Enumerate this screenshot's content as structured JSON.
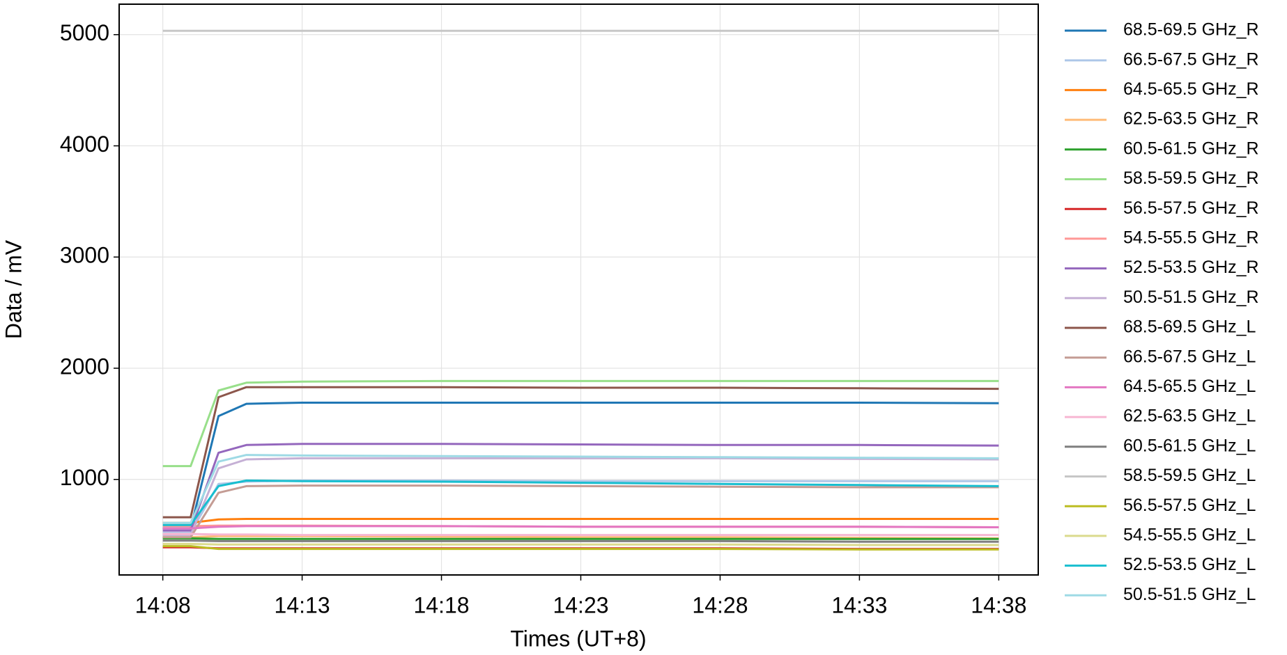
{
  "chart_data": {
    "type": "line",
    "xlabel": "Times (UT+8)",
    "ylabel": "Data / mV",
    "x": [
      "14:08",
      "14:09",
      "14:10",
      "14:11",
      "14:13",
      "14:18",
      "14:23",
      "14:28",
      "14:33",
      "14:38"
    ],
    "xlim": [
      "14:06:26",
      "14:39:25"
    ],
    "xticks": [
      "14:08",
      "14:13",
      "14:18",
      "14:23",
      "14:28",
      "14:33",
      "14:38"
    ],
    "ylim": [
      141,
      5274
    ],
    "yticks": [
      1000,
      2000,
      3000,
      4000,
      5000
    ],
    "grid": true,
    "legend": "outside right",
    "series": [
      {
        "name": "68.5-69.5 GHz_R",
        "color": "#1f77b4",
        "values": [
          560,
          560,
          1570,
          1680,
          1690,
          1690,
          1690,
          1690,
          1690,
          1685
        ]
      },
      {
        "name": "66.5-67.5 GHz_R",
        "color": "#aec7e8",
        "values": [
          520,
          520,
          960,
          980,
          990,
          990,
          985,
          985,
          985,
          985
        ]
      },
      {
        "name": "64.5-65.5 GHz_R",
        "color": "#ff7f0e",
        "values": [
          610,
          610,
          640,
          645,
          645,
          645,
          645,
          645,
          645,
          645
        ]
      },
      {
        "name": "62.5-63.5 GHz_R",
        "color": "#ffbb78",
        "values": [
          480,
          480,
          490,
          490,
          490,
          485,
          480,
          480,
          475,
          470
        ]
      },
      {
        "name": "60.5-61.5 GHz_R",
        "color": "#2ca02c",
        "values": [
          470,
          470,
          465,
          465,
          465,
          465,
          465,
          465,
          465,
          465
        ]
      },
      {
        "name": "58.5-59.5 GHz_R",
        "color": "#98df8a",
        "values": [
          1120,
          1120,
          1800,
          1870,
          1880,
          1885,
          1885,
          1885,
          1885,
          1885
        ]
      },
      {
        "name": "56.5-57.5 GHz_R",
        "color": "#d62728",
        "values": [
          390,
          390,
          380,
          380,
          380,
          380,
          380,
          380,
          375,
          375
        ]
      },
      {
        "name": "54.5-55.5 GHz_R",
        "color": "#ff9896",
        "values": [
          580,
          580,
          585,
          585,
          585,
          580,
          575,
          575,
          575,
          570
        ]
      },
      {
        "name": "52.5-53.5 GHz_R",
        "color": "#9467bd",
        "values": [
          540,
          540,
          1240,
          1310,
          1320,
          1320,
          1315,
          1310,
          1310,
          1305
        ]
      },
      {
        "name": "50.5-51.5 GHz_R",
        "color": "#c5b0d5",
        "values": [
          500,
          500,
          1100,
          1180,
          1190,
          1190,
          1190,
          1190,
          1185,
          1180
        ]
      },
      {
        "name": "68.5-69.5 GHz_L",
        "color": "#8c564b",
        "values": [
          660,
          660,
          1740,
          1830,
          1830,
          1830,
          1825,
          1825,
          1820,
          1815
        ]
      },
      {
        "name": "66.5-67.5 GHz_L",
        "color": "#c49c94",
        "values": [
          480,
          480,
          880,
          940,
          945,
          945,
          940,
          935,
          930,
          930
        ]
      },
      {
        "name": "64.5-65.5 GHz_L",
        "color": "#e377c2",
        "values": [
          560,
          560,
          575,
          580,
          580,
          580,
          575,
          575,
          575,
          570
        ]
      },
      {
        "name": "62.5-63.5 GHz_L",
        "color": "#f7b6d2",
        "values": [
          510,
          510,
          505,
          505,
          500,
          500,
          500,
          500,
          500,
          500
        ]
      },
      {
        "name": "60.5-61.5 GHz_L",
        "color": "#7f7f7f",
        "values": [
          450,
          450,
          445,
          445,
          445,
          445,
          445,
          445,
          440,
          440
        ]
      },
      {
        "name": "58.5-59.5 GHz_L",
        "color": "#c7c7c7",
        "values": [
          5035,
          5035,
          5035,
          5035,
          5035,
          5035,
          5035,
          5035,
          5035,
          5035
        ]
      },
      {
        "name": "56.5-57.5 GHz_L",
        "color": "#bcbd22",
        "values": [
          400,
          400,
          375,
          375,
          375,
          375,
          375,
          375,
          370,
          370
        ]
      },
      {
        "name": "54.5-55.5 GHz_L",
        "color": "#dbdb8d",
        "values": [
          420,
          420,
          415,
          415,
          415,
          415,
          415,
          415,
          410,
          410
        ]
      },
      {
        "name": "52.5-53.5 GHz_L",
        "color": "#17becf",
        "values": [
          590,
          590,
          940,
          990,
          985,
          980,
          970,
          960,
          950,
          940
        ]
      },
      {
        "name": "50.5-51.5 GHz_L",
        "color": "#9edae5",
        "values": [
          610,
          610,
          1160,
          1220,
          1215,
          1210,
          1205,
          1200,
          1195,
          1190
        ]
      }
    ]
  }
}
